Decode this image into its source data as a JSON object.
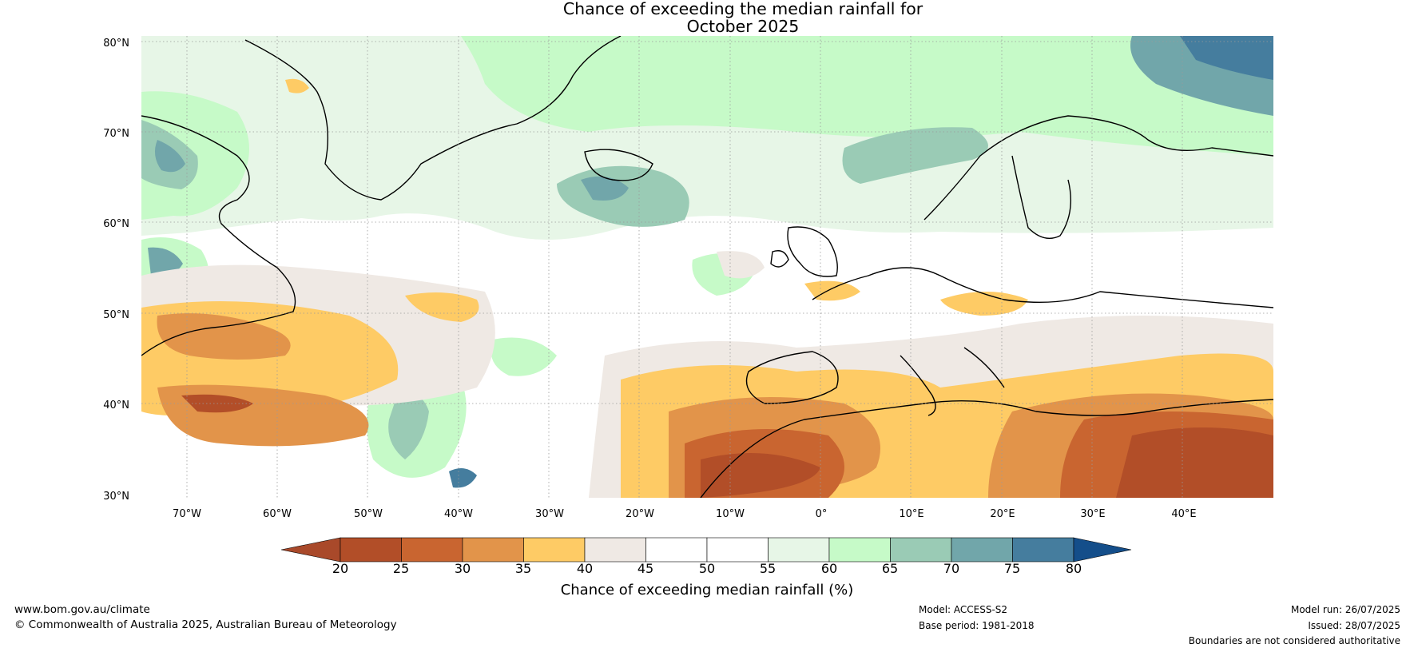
{
  "title": {
    "line1": "Chance of exceeding the median rainfall for",
    "line2": "October 2025"
  },
  "lat_labels": [
    "80°N",
    "70°N",
    "60°N",
    "50°N",
    "40°N",
    "30°N"
  ],
  "lon_labels": [
    "70°W",
    "60°W",
    "50°W",
    "40°W",
    "30°W",
    "20°W",
    "10°W",
    "0°",
    "10°E",
    "20°E",
    "30°E",
    "40°E"
  ],
  "map": {
    "extent": {
      "lon": [
        -75,
        50
      ],
      "lat": [
        30,
        81
      ]
    },
    "regions": [
      "Greenland",
      "Iceland",
      "Scandinavia",
      "British Isles",
      "Iberian Peninsula",
      "North Africa",
      "Mediterranean",
      "Middle East",
      "North Atlantic",
      "Eastern Canada"
    ],
    "features": [
      "coastlines",
      "country boundaries",
      "lat/lon gridlines"
    ]
  },
  "colorbar": {
    "ticks": [
      "20",
      "25",
      "30",
      "35",
      "40",
      "45",
      "50",
      "55",
      "60",
      "65",
      "70",
      "75",
      "80"
    ],
    "colors": [
      "#a9492a",
      "#b24e28",
      "#c96530",
      "#e2944a",
      "#fecb65",
      "#efe9e4",
      "#ffffff",
      "#ffffff",
      "#e7f6e7",
      "#c6fac8",
      "#9acbb5",
      "#71a6aa",
      "#457d9e",
      "#144e8a"
    ],
    "label": "Chance of exceeding median rainfall (%)"
  },
  "footer": {
    "website": "www.bom.gov.au/climate",
    "copyright": "© Commonwealth of Australia 2025, Australian Bureau of Meteorology",
    "model": "Model: ACCESS-S2",
    "base_period": "Base period: 1981-2018",
    "model_run": "Model run: 26/07/2025",
    "issued": "Issued: 28/07/2025",
    "disclaimer": "Boundaries are not considered authoritative"
  }
}
